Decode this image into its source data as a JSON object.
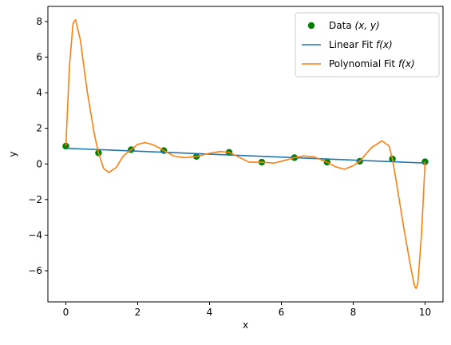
{
  "chart_data": {
    "type": "line",
    "xlabel": "x",
    "ylabel": "y",
    "xlim": [
      -0.5,
      10.5
    ],
    "ylim": [
      -7.75,
      8.85
    ],
    "x_ticks": [
      0,
      2,
      4,
      6,
      8,
      10
    ],
    "x_tick_labels": [
      "0",
      "2",
      "4",
      "6",
      "8",
      "10"
    ],
    "y_ticks": [
      -6,
      -4,
      -2,
      0,
      2,
      4,
      6,
      8
    ],
    "y_tick_labels": [
      "−6",
      "−4",
      "−2",
      "0",
      "2",
      "4",
      "6",
      "8"
    ],
    "grid": false,
    "legend_position": "top-right",
    "series": [
      {
        "name": "Data (x, y)",
        "kind": "scatter",
        "color": "#008000",
        "x": [
          0,
          0.909,
          1.818,
          2.727,
          3.636,
          4.545,
          5.455,
          6.364,
          7.273,
          8.182,
          9.091,
          10
        ],
        "y": [
          1.0,
          0.62,
          0.8,
          0.75,
          0.42,
          0.65,
          0.1,
          0.35,
          0.1,
          0.15,
          0.28,
          0.12
        ]
      },
      {
        "name": "Linear Fit f(x)",
        "kind": "line",
        "color": "#1f77b4",
        "x": [
          0,
          10
        ],
        "y": [
          0.88,
          0.05
        ]
      },
      {
        "name": "Polynomial Fit f(x)",
        "kind": "line",
        "color": "#ff7f0e",
        "x": [
          0,
          0.1,
          0.2,
          0.27,
          0.4,
          0.6,
          0.8,
          0.909,
          1.05,
          1.2,
          1.4,
          1.6,
          1.818,
          2.0,
          2.2,
          2.4,
          2.6,
          2.727,
          3.0,
          3.3,
          3.636,
          4.0,
          4.3,
          4.545,
          4.8,
          5.1,
          5.455,
          5.8,
          6.1,
          6.364,
          6.6,
          6.9,
          7.273,
          7.5,
          7.75,
          8.0,
          8.182,
          8.5,
          8.8,
          9.0,
          9.091,
          9.2,
          9.4,
          9.6,
          9.7,
          9.75,
          9.8,
          9.9,
          9.95,
          10.0
        ],
        "y": [
          1.0,
          5.5,
          7.9,
          8.1,
          7.0,
          4.0,
          1.6,
          0.62,
          -0.25,
          -0.48,
          -0.2,
          0.45,
          0.8,
          1.1,
          1.2,
          1.1,
          0.9,
          0.75,
          0.45,
          0.35,
          0.42,
          0.6,
          0.7,
          0.65,
          0.4,
          0.1,
          0.1,
          0.05,
          0.2,
          0.35,
          0.45,
          0.4,
          0.1,
          -0.15,
          -0.3,
          -0.1,
          0.15,
          0.9,
          1.3,
          1.0,
          0.28,
          -1.0,
          -3.5,
          -5.8,
          -6.8,
          -7.0,
          -6.7,
          -4.0,
          -2.0,
          0.12
        ]
      }
    ],
    "legend": [
      {
        "label": "Data ",
        "math": "(x, y)"
      },
      {
        "label": "Linear Fit ",
        "math": "f(x)"
      },
      {
        "label": "Polynomial Fit ",
        "math": "f(x)"
      }
    ]
  }
}
